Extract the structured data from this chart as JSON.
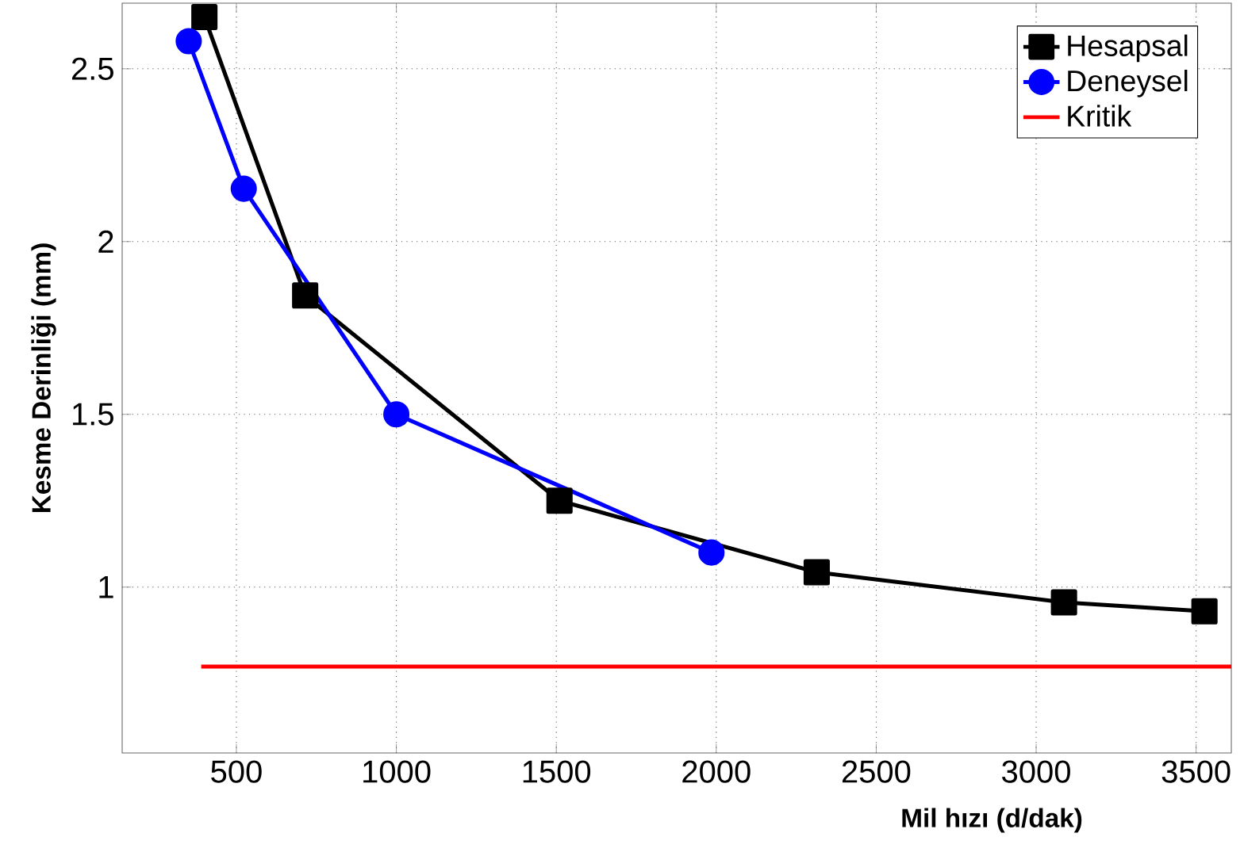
{
  "chart_data": {
    "type": "line",
    "xlabel": "Mil hızı (d/dak)",
    "ylabel": "Kesme Derinliği (mm)",
    "xlim": [
      143,
      3610
    ],
    "ylim": [
      0.52,
      2.69
    ],
    "xticks": [
      500,
      1000,
      1500,
      2000,
      2500,
      3000,
      3500
    ],
    "yticks": [
      1,
      1.5,
      2,
      2.5
    ],
    "grid": true,
    "legend": "top right",
    "line_style": "solid",
    "series": [
      {
        "name": "Hesapsal",
        "color": "#000000",
        "marker": "square",
        "x": [
          400,
          715,
          1510,
          2314,
          3087,
          3526
        ],
        "values": [
          2.65,
          1.844,
          1.25,
          1.043,
          0.956,
          0.93
        ]
      },
      {
        "name": "Deneysel",
        "color": "#0000ff",
        "marker": "circle",
        "x": [
          351,
          523,
          1000,
          1985
        ],
        "values": [
          2.58,
          2.153,
          1.5,
          1.1
        ]
      },
      {
        "name": "Kritik",
        "color": "#ff0000",
        "marker": "none",
        "x": [
          390,
          3610
        ],
        "values": [
          0.77,
          0.77
        ]
      }
    ]
  }
}
